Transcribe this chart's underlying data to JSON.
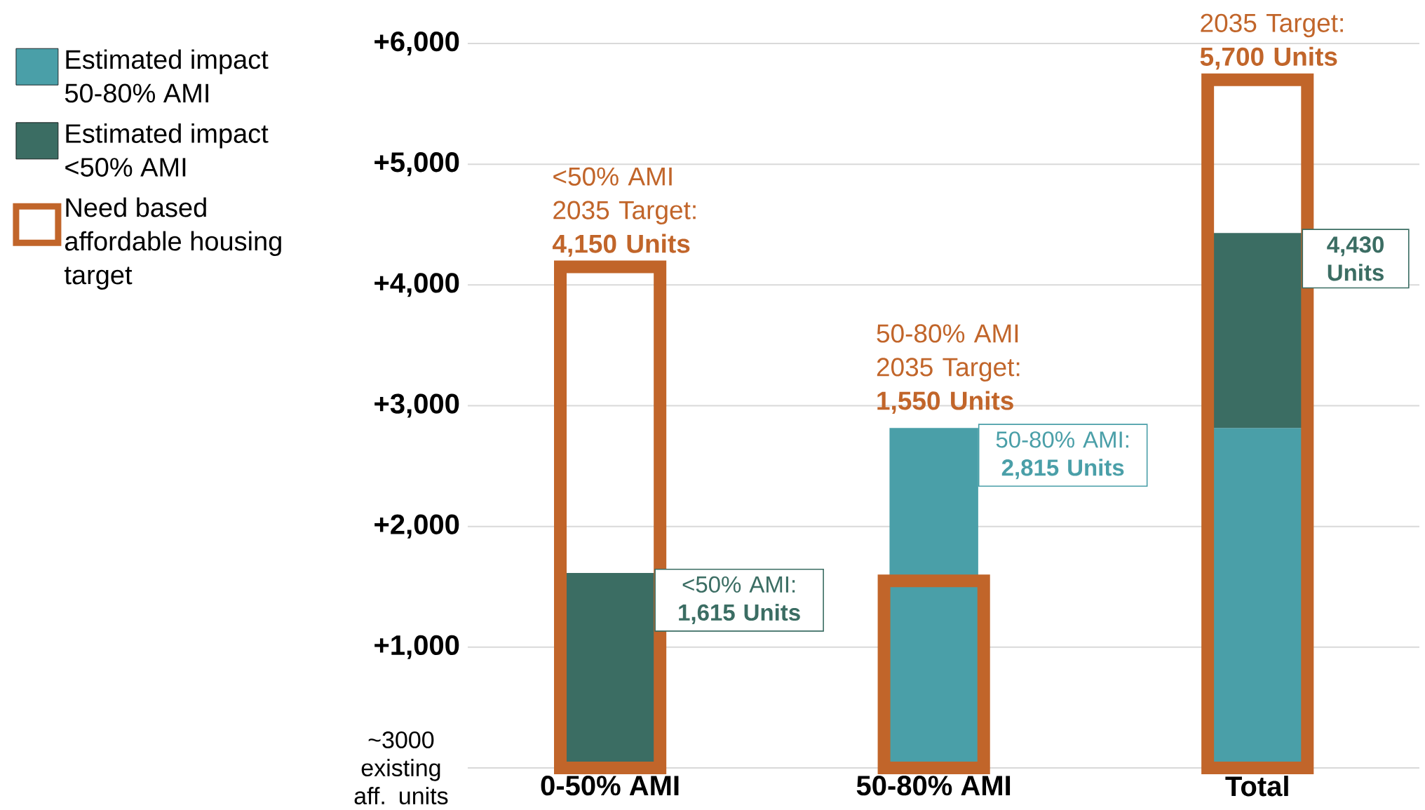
{
  "chart_data": {
    "type": "bar",
    "categories": [
      "0-50% AMI",
      "50-80% AMI",
      "Total"
    ],
    "series": [
      {
        "name": "Estimated impact 50-80% AMI",
        "color": "#4a9fa8",
        "values": [
          null,
          2815,
          2815
        ]
      },
      {
        "name": "Estimated impact <50% AMI",
        "color": "#3b6d63",
        "values": [
          1615,
          null,
          1615
        ],
        "base": [
          0,
          null,
          2815
        ]
      },
      {
        "name": "Need based affordable housing target",
        "color": "#c1652a",
        "values": [
          4150,
          1550,
          5700
        ]
      }
    ],
    "ylim": [
      0,
      6000
    ],
    "yticks": [
      {
        "value": 0,
        "label": null
      },
      {
        "value": 1000,
        "label": "+1,000"
      },
      {
        "value": 2000,
        "label": "+2,000"
      },
      {
        "value": 3000,
        "label": "+3,000"
      },
      {
        "value": 4000,
        "label": "+4,000"
      },
      {
        "value": 5000,
        "label": "+5,000"
      },
      {
        "value": 6000,
        "label": "+6,000"
      }
    ],
    "grid": "y",
    "legend": "left",
    "annotations": [
      "~3000 existing aff. units",
      {
        "text": "<50% AMI 2035 Target: **4,150 Units**",
        "x": "0-50% AMI",
        "y": 4150
      },
      "50-80% AMI 2035 Target: **1,550 Units**",
      {
        "text": "2035 Target: **5,700 Units**",
        "x": "Total",
        "y": 5700
      },
      {
        "text": "<50% AMI: **1,615 Units**",
        "x": "0-50% AMI",
        "y": 1615
      },
      {
        "text": "50-80% AMI: **2,815 Units**",
        "x": "50-80% AMI",
        "y": 2815
      },
      "**4,430 Units**"
    ]
  }
}
